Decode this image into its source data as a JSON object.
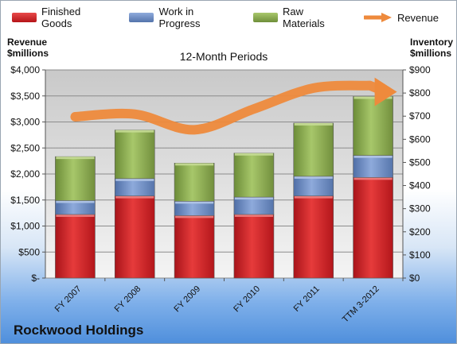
{
  "title_company": "Rockwood Holdings",
  "legend": {
    "finished": "Finished Goods",
    "wip": "Work in Progress",
    "raw": "Raw Materials",
    "revenue": "Revenue"
  },
  "left_axis_title": [
    "Revenue",
    "$millions"
  ],
  "right_axis_title": [
    "Inventory",
    "$millions"
  ],
  "chart_data": {
    "type": "bar",
    "stacked": true,
    "subtitle": "12-Month Periods",
    "categories": [
      "FY 2007",
      "FY 2008",
      "FY 2009",
      "FY 2010",
      "FY 2011",
      "TTM 3-2012"
    ],
    "series": [
      {
        "name": "Finished Goods",
        "axis": "right",
        "color": "#cc1f22",
        "values": [
          275,
          355,
          270,
          275,
          355,
          435
        ]
      },
      {
        "name": "Work in Progress",
        "axis": "right",
        "color": "#6f8fc4",
        "values": [
          60,
          75,
          62,
          75,
          85,
          95
        ]
      },
      {
        "name": "Raw Materials",
        "axis": "right",
        "color": "#8fb053",
        "values": [
          190,
          210,
          165,
          190,
          230,
          255
        ]
      },
      {
        "name": "Revenue",
        "axis": "left",
        "type": "line",
        "color": "#ee8a3c",
        "values": [
          3100,
          3150,
          2850,
          3250,
          3650,
          3700
        ]
      }
    ],
    "y_left": {
      "min": 0,
      "max": 4000,
      "step": 500,
      "ticks": [
        "$-",
        "$500",
        "$1,000",
        "$1,500",
        "$2,000",
        "$2,500",
        "$3,000",
        "$3,500",
        "$4,000"
      ]
    },
    "y_right": {
      "min": 0,
      "max": 900,
      "step": 100,
      "ticks": [
        "$0",
        "$100",
        "$200",
        "$300",
        "$400",
        "$500",
        "$600",
        "$700",
        "$800",
        "$900"
      ]
    },
    "grid": true
  }
}
